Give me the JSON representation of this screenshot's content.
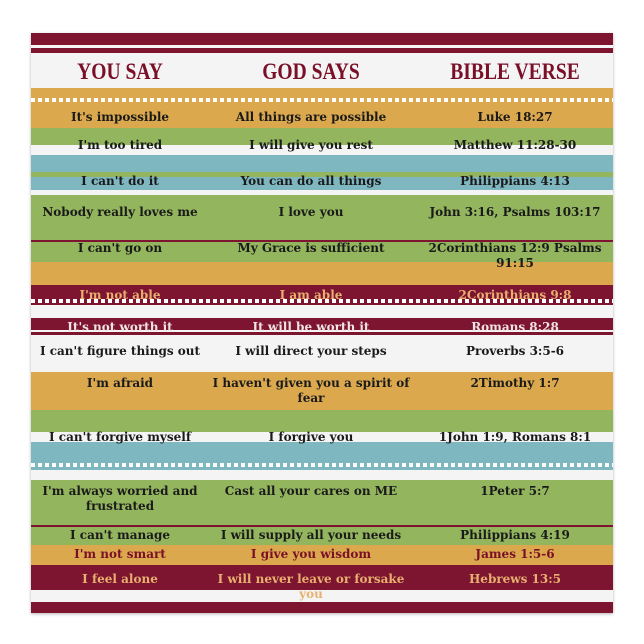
{
  "headers": [
    "YOU SAY",
    "GOD SAYS",
    "BIBLE VERSE"
  ],
  "rows": [
    {
      "you": "It's impossible",
      "god": "All things are possible",
      "verse": "Luke 18:27"
    },
    {
      "you": "I'm too tired",
      "god": "I will give you rest",
      "verse": "Matthew 11:28-30"
    },
    {
      "you": "I can't do it",
      "god": "You can do all things",
      "verse": "Philippians 4:13"
    },
    {
      "you": "Nobody really loves me",
      "god": "I love you",
      "verse": "John 3:16, Psalms 103:17"
    },
    {
      "you": "I can't go on",
      "god": "My Grace is sufficient",
      "verse": "2Corinthians 12:9 Psalms 91:15"
    },
    {
      "you": "I'm not able",
      "god": "I am able",
      "verse": "2Corinthians 9:8"
    },
    {
      "you": "It's not worth it",
      "god": "It will be worth it",
      "verse": "Romans 8:28"
    },
    {
      "you": "I can't figure things out",
      "god": "I will direct your steps",
      "verse": "Proverbs 3:5-6"
    },
    {
      "you": "I'm afraid",
      "god": "I haven't given you a spirit of fear",
      "verse": "2Timothy 1:7"
    },
    {
      "you": "I can't forgive myself",
      "god": "I forgive you",
      "verse": "1John 1:9, Romans 8:1"
    },
    {
      "you": "I'm always worried and frustrated",
      "god": "Cast all your cares on ME",
      "verse": "1Peter 5:7"
    },
    {
      "you": "I can't manage",
      "god": "I will supply all your needs",
      "verse": "Philippians 4:19"
    },
    {
      "you": "I'm not smart",
      "god": "I give you wisdom",
      "verse": "James 1:5-6"
    },
    {
      "you": "I feel alone",
      "god": "I will never leave or forsake you",
      "verse": "Hebrews 13:5"
    }
  ],
  "colors": {
    "maroon": "#7d1430",
    "orange": "#dba84e",
    "green": "#93b55e",
    "blue": "#7fb7c0",
    "white": "#f2f2f0"
  }
}
